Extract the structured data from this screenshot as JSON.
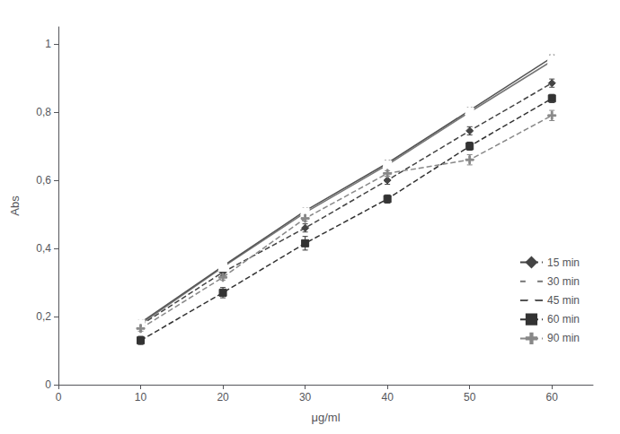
{
  "chart_data": {
    "type": "line",
    "xlabel": "μg/ml",
    "ylabel": "Abs",
    "x": [
      10,
      20,
      30,
      40,
      50,
      60
    ],
    "series": [
      {
        "name": "15 min",
        "color": "#444444",
        "marker": "diamond",
        "line_style": "dashed",
        "values": [
          0.175,
          0.33,
          0.46,
          0.6,
          0.745,
          0.885
        ],
        "yerr": [
          0.008,
          0.01,
          0.012,
          0.012,
          0.012,
          0.012
        ]
      },
      {
        "name": "30 min",
        "color": "#777777",
        "marker": "open square",
        "line_style": "solid",
        "values": [
          0.178,
          0.345,
          0.505,
          0.645,
          0.8,
          0.95
        ],
        "yerr": [
          0.008,
          0.008,
          0.008,
          0.008,
          0.008,
          0.008
        ]
      },
      {
        "name": "45 min",
        "color": "#555555",
        "marker": "open triangle",
        "line_style": "solid",
        "values": [
          0.182,
          0.348,
          0.51,
          0.65,
          0.805,
          0.96
        ],
        "yerr": [
          0.008,
          0.008,
          0.008,
          0.008,
          0.008,
          0.008
        ]
      },
      {
        "name": "60 min",
        "color": "#333333",
        "marker": "square",
        "line_style": "dashed",
        "values": [
          0.13,
          0.27,
          0.415,
          0.545,
          0.7,
          0.84
        ],
        "yerr": [
          0.012,
          0.015,
          0.02,
          0.012,
          0.012,
          0.012
        ]
      },
      {
        "name": "90 min",
        "color": "#888888",
        "marker": "plus",
        "line_style": "dashed",
        "values": [
          0.165,
          0.315,
          0.488,
          0.62,
          0.66,
          0.79
        ],
        "yerr": [
          0.008,
          0.008,
          0.008,
          0.008,
          0.015,
          0.015
        ]
      }
    ],
    "xlim": [
      0,
      65
    ],
    "ylim": [
      0,
      1.05
    ],
    "xticks": [
      0,
      10,
      20,
      30,
      40,
      50,
      60
    ],
    "yticks": [
      0,
      {
        "value": 0.2,
        "label": "0,2"
      },
      {
        "value": 0.4,
        "label": "0,4"
      },
      {
        "value": 0.6,
        "label": "0,6"
      },
      {
        "value": 0.8,
        "label": "0,8"
      },
      1
    ],
    "grid": false,
    "legend": "right"
  }
}
